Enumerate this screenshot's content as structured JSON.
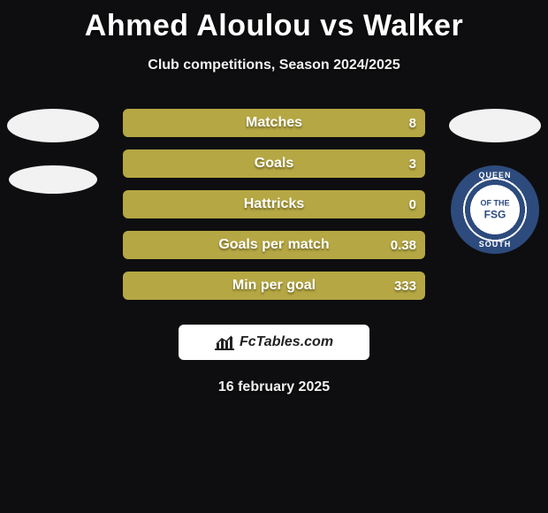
{
  "title": "Ahmed Aloulou vs Walker",
  "subtitle": "Club competitions, Season 2024/2025",
  "date": "16 february 2025",
  "footer_brand": "FcTables.com",
  "colors": {
    "background": "#0e0e10",
    "bar_fill": "#b5a743",
    "bar_empty": "#5a5a5a",
    "badge_bg": "#ffffff",
    "qos_ring": "#2d4b7d"
  },
  "qos": {
    "top": "QUEEN",
    "bottom": "SOUTH",
    "center_top": "OF THE",
    "center": "FSG"
  },
  "bars": [
    {
      "label": "Matches",
      "value": "8",
      "fill": 1.0
    },
    {
      "label": "Goals",
      "value": "3",
      "fill": 1.0
    },
    {
      "label": "Hattricks",
      "value": "0",
      "fill": 1.0
    },
    {
      "label": "Goals per match",
      "value": "0.38",
      "fill": 1.0
    },
    {
      "label": "Min per goal",
      "value": "333",
      "fill": 1.0
    }
  ]
}
